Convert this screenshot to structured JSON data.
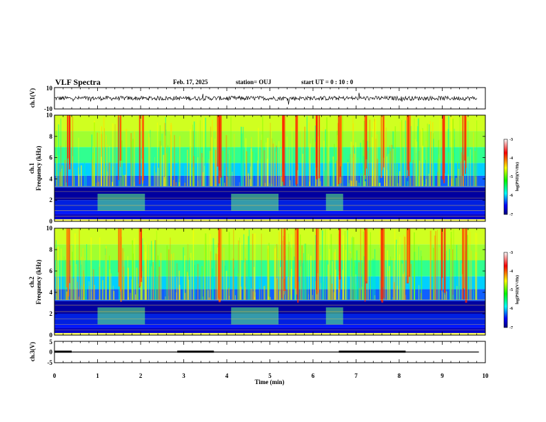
{
  "header": {
    "title": "VLF Spectra",
    "date": "Feb. 17, 2025",
    "station": "station= OUJ",
    "start_ut": "start  UT =   0 : 10 : 0"
  },
  "colors": {
    "axis": "#000000",
    "waveform": "#000000",
    "colormap": [
      "#ffffff",
      "#ff0000",
      "#ffff00",
      "#00ff00",
      "#00ffff",
      "#0000ff",
      "#000080"
    ]
  },
  "chart_data": [
    {
      "type": "line",
      "panel": "ch1-waveform",
      "ylabel": "ch.1(V)",
      "ylim": [
        -10,
        10
      ],
      "y_tick_labels": [
        "10",
        "-10"
      ],
      "x": [
        0,
        10
      ],
      "description_values": {
        "mean_level_V": 0,
        "approx_amplitude_V": 2
      }
    },
    {
      "type": "heatmap",
      "panel": "ch1-spectrogram",
      "ylabel_lines": [
        "ch.1",
        "Frequency  (kHz)"
      ],
      "ylim": [
        0,
        10
      ],
      "y_ticks": [
        0,
        2,
        4,
        6,
        8,
        10
      ],
      "xlim": [
        0,
        10
      ],
      "colorbar": {
        "label": "log(PSD)(V²/Hz)",
        "range": [
          -7,
          -3
        ],
        "ticks": [
          "-3",
          "-4",
          "-5",
          "-6",
          "-7"
        ]
      },
      "events_bright_min": [
        0.3,
        1.5,
        2.0,
        3.8,
        5.3,
        5.6,
        6.1,
        6.6,
        7.2,
        7.6,
        8.2,
        9.0,
        9.5
      ],
      "quiet_intervals_min": [
        [
          1.0,
          2.1
        ],
        [
          4.1,
          5.2
        ],
        [
          6.3,
          6.7
        ]
      ]
    },
    {
      "type": "heatmap",
      "panel": "ch2-spectrogram",
      "ylabel_lines": [
        "ch.2",
        "Frequency  (kHz)"
      ],
      "ylim": [
        0,
        10
      ],
      "y_ticks": [
        0,
        2,
        4,
        6,
        8,
        10
      ],
      "xlim": [
        0,
        10
      ],
      "colorbar": {
        "label": "log(PSD)(V²/Hz)",
        "range": [
          -7,
          -3
        ],
        "ticks": [
          "-3",
          "-4",
          "-5",
          "-6",
          "-7"
        ]
      },
      "events_bright_min": [
        0.3,
        1.5,
        2.0,
        3.8,
        5.3,
        5.6,
        6.1,
        6.6,
        7.2,
        7.6,
        8.2,
        9.0,
        9.5
      ],
      "quiet_intervals_min": [
        [
          1.0,
          2.1
        ],
        [
          4.1,
          5.2
        ],
        [
          6.3,
          6.7
        ]
      ]
    },
    {
      "type": "line",
      "panel": "ch3-signal",
      "ylabel": "ch.3(V)",
      "ylim": [
        -5,
        5
      ],
      "y_tick_labels": [
        "5",
        "0",
        "-5"
      ],
      "xlabel": "Time  (min)",
      "xlim": [
        0,
        10
      ],
      "x_ticks": [
        0,
        1,
        2,
        3,
        4,
        5,
        6,
        7,
        8,
        9,
        10
      ],
      "baseline_V": 0,
      "thick_segments_min": [
        [
          0.0,
          0.4
        ],
        [
          2.85,
          3.7
        ],
        [
          6.6,
          8.15
        ]
      ]
    }
  ]
}
